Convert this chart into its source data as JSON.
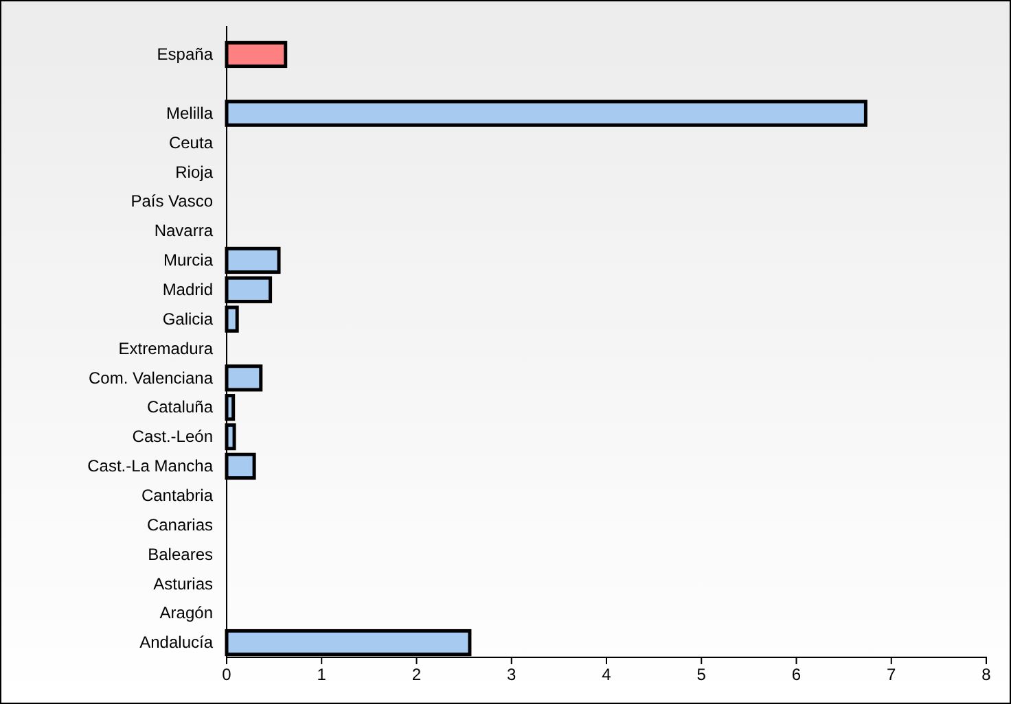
{
  "chart_data": {
    "type": "bar",
    "orientation": "horizontal",
    "categories": [
      "España",
      null,
      "Melilla",
      "Ceuta",
      "Rioja",
      "País Vasco",
      "Navarra",
      "Murcia",
      "Madrid",
      "Galicia",
      "Extremadura",
      "Com. Valenciana",
      "Cataluña",
      "Cast.-León",
      "Cast.-La Mancha",
      "Cantabria",
      "Canarias",
      "Baleares",
      "Asturias",
      "Aragón",
      "Andalucía"
    ],
    "values": [
      0.62,
      null,
      6.73,
      0,
      0,
      0,
      0,
      0.55,
      0.46,
      0.11,
      0,
      0.36,
      0.07,
      0.08,
      0.29,
      0,
      0,
      0,
      0,
      0,
      2.56
    ],
    "colors": [
      "#ff8080",
      null,
      "#a6caf0",
      "#a6caf0",
      "#a6caf0",
      "#a6caf0",
      "#a6caf0",
      "#a6caf0",
      "#a6caf0",
      "#a6caf0",
      "#a6caf0",
      "#a6caf0",
      "#a6caf0",
      "#a6caf0",
      "#a6caf0",
      "#a6caf0",
      "#a6caf0",
      "#a6caf0",
      "#a6caf0",
      "#a6caf0",
      "#a6caf0"
    ],
    "xlim": [
      0,
      8
    ],
    "xticks": [
      0,
      1,
      2,
      3,
      4,
      5,
      6,
      7,
      8
    ],
    "grid": false
  }
}
